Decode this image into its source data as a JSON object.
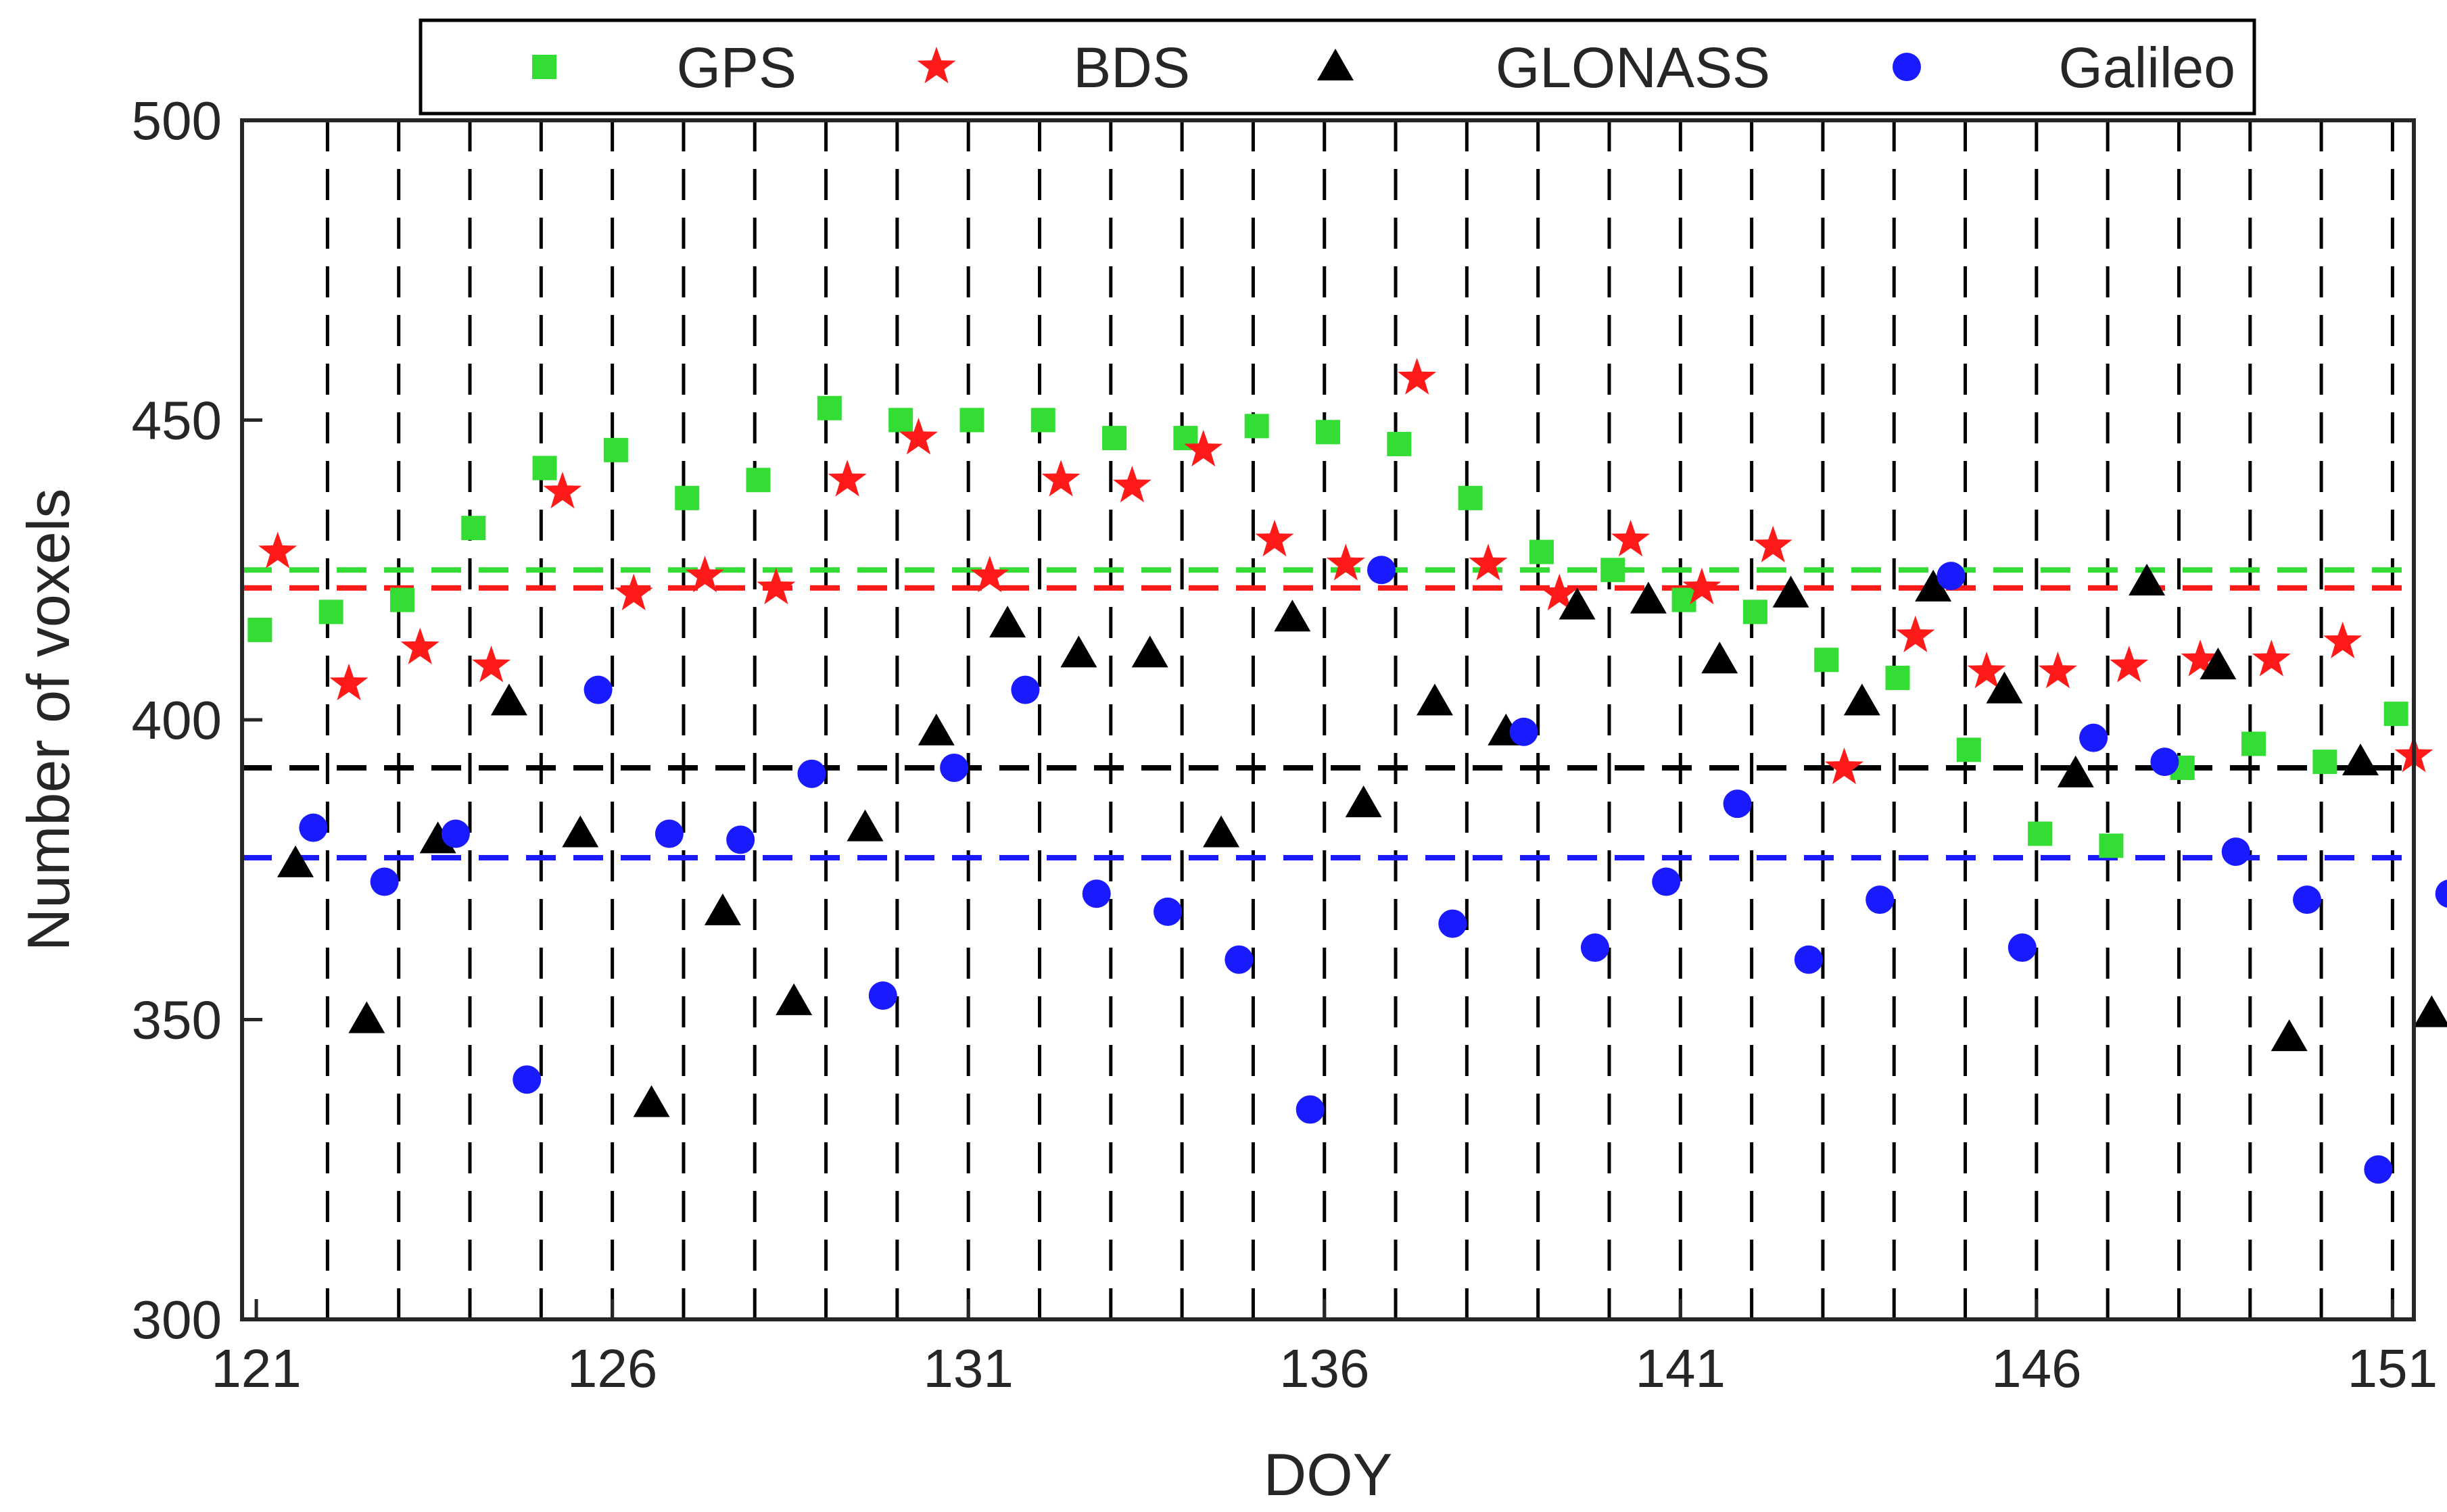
{
  "chart_data": {
    "type": "scatter",
    "title": "",
    "xlabel": "DOY",
    "ylabel": "Number of voxels",
    "xlim": [
      120.8,
      151.3
    ],
    "ylim": [
      300,
      500
    ],
    "xticks": [
      121,
      126,
      131,
      136,
      141,
      146,
      151
    ],
    "yticks": [
      300,
      350,
      400,
      450,
      500
    ],
    "xtick_labels": [
      "121",
      "126",
      "131",
      "136",
      "141",
      "146",
      "151"
    ],
    "ytick_labels": [
      "300",
      "350",
      "400",
      "450",
      "500"
    ],
    "day_separators": [
      122,
      123,
      124,
      125,
      126,
      127,
      128,
      129,
      130,
      131,
      132,
      133,
      134,
      135,
      136,
      137,
      138,
      139,
      140,
      141,
      142,
      143,
      144,
      145,
      146,
      147,
      148,
      149,
      150,
      151
    ],
    "legend_position": "top",
    "series": [
      {
        "name": "GPS",
        "marker": "square",
        "color": "#33dd33",
        "mean": 425,
        "x": [
          121.05,
          122.05,
          123.05,
          124.05,
          125.05,
          126.05,
          127.05,
          128.05,
          129.05,
          130.05,
          131.05,
          132.05,
          133.05,
          134.05,
          135.05,
          136.05,
          137.05,
          138.05,
          139.05,
          140.05,
          141.05,
          142.05,
          143.05,
          144.05,
          145.05,
          146.05,
          147.05,
          148.05,
          149.05,
          150.05,
          151.05
        ],
        "y": [
          415,
          418,
          420,
          432,
          442,
          445,
          437,
          440,
          452,
          450,
          450,
          450,
          447,
          447,
          449,
          448,
          446,
          437,
          428,
          425,
          420,
          418,
          410,
          407,
          395,
          381,
          379,
          392,
          396,
          393,
          401
        ]
      },
      {
        "name": "BDS",
        "marker": "star",
        "color": "#ff1a1a",
        "mean": 422,
        "x": [
          121.3,
          122.3,
          123.3,
          124.3,
          125.3,
          126.3,
          127.3,
          128.3,
          129.3,
          130.3,
          131.3,
          132.3,
          133.3,
          134.3,
          135.3,
          136.3,
          137.3,
          138.3,
          139.3,
          140.3,
          141.3,
          142.3,
          143.3,
          144.3,
          145.3,
          146.3,
          147.3,
          148.3,
          149.3,
          150.3,
          151.3
        ],
        "y": [
          428,
          406,
          412,
          409,
          438,
          421,
          424,
          422,
          440,
          447,
          424,
          440,
          439,
          445,
          430,
          426,
          457,
          426,
          421,
          430,
          422,
          429,
          392,
          414,
          408,
          408,
          409,
          410,
          410,
          413,
          394
        ]
      },
      {
        "name": "GLONASS",
        "marker": "triangle",
        "color": "#000000",
        "mean": 392,
        "x": [
          121.55,
          122.55,
          123.55,
          124.55,
          125.55,
          126.55,
          127.55,
          128.55,
          129.55,
          130.55,
          131.55,
          132.55,
          133.55,
          134.55,
          135.55,
          136.55,
          137.55,
          138.55,
          139.55,
          140.55,
          141.55,
          142.55,
          143.55,
          144.55,
          145.55,
          146.55,
          147.55,
          148.55,
          149.55,
          150.55,
          151.55
        ],
        "y": [
          376,
          350,
          380,
          403,
          381,
          336,
          368,
          353,
          382,
          398,
          416,
          411,
          411,
          381,
          417,
          386,
          403,
          398,
          419,
          420,
          410,
          421,
          403,
          422,
          405,
          391,
          423,
          409,
          347,
          393,
          351
        ]
      },
      {
        "name": "Galileo",
        "marker": "circle",
        "color": "#1a1aff",
        "mean": 377,
        "x": [
          121.8,
          122.8,
          123.8,
          124.8,
          125.8,
          126.8,
          127.8,
          128.8,
          129.8,
          130.8,
          131.8,
          132.8,
          133.8,
          134.8,
          135.8,
          136.8,
          137.8,
          138.8,
          139.8,
          140.8,
          141.8,
          142.8,
          143.8,
          144.8,
          145.8,
          146.8,
          147.8,
          148.8,
          149.8,
          150.8,
          151.8
        ],
        "y": [
          382,
          373,
          381,
          340,
          405,
          381,
          380,
          391,
          354,
          392,
          405,
          371,
          368,
          360,
          335,
          425,
          366,
          398,
          362,
          373,
          386,
          360,
          370,
          424,
          362,
          397,
          393,
          378,
          370,
          325,
          371
        ]
      }
    ]
  },
  "legend": {
    "entries": [
      "GPS",
      "BDS",
      "GLONASS",
      "Galileo"
    ]
  }
}
